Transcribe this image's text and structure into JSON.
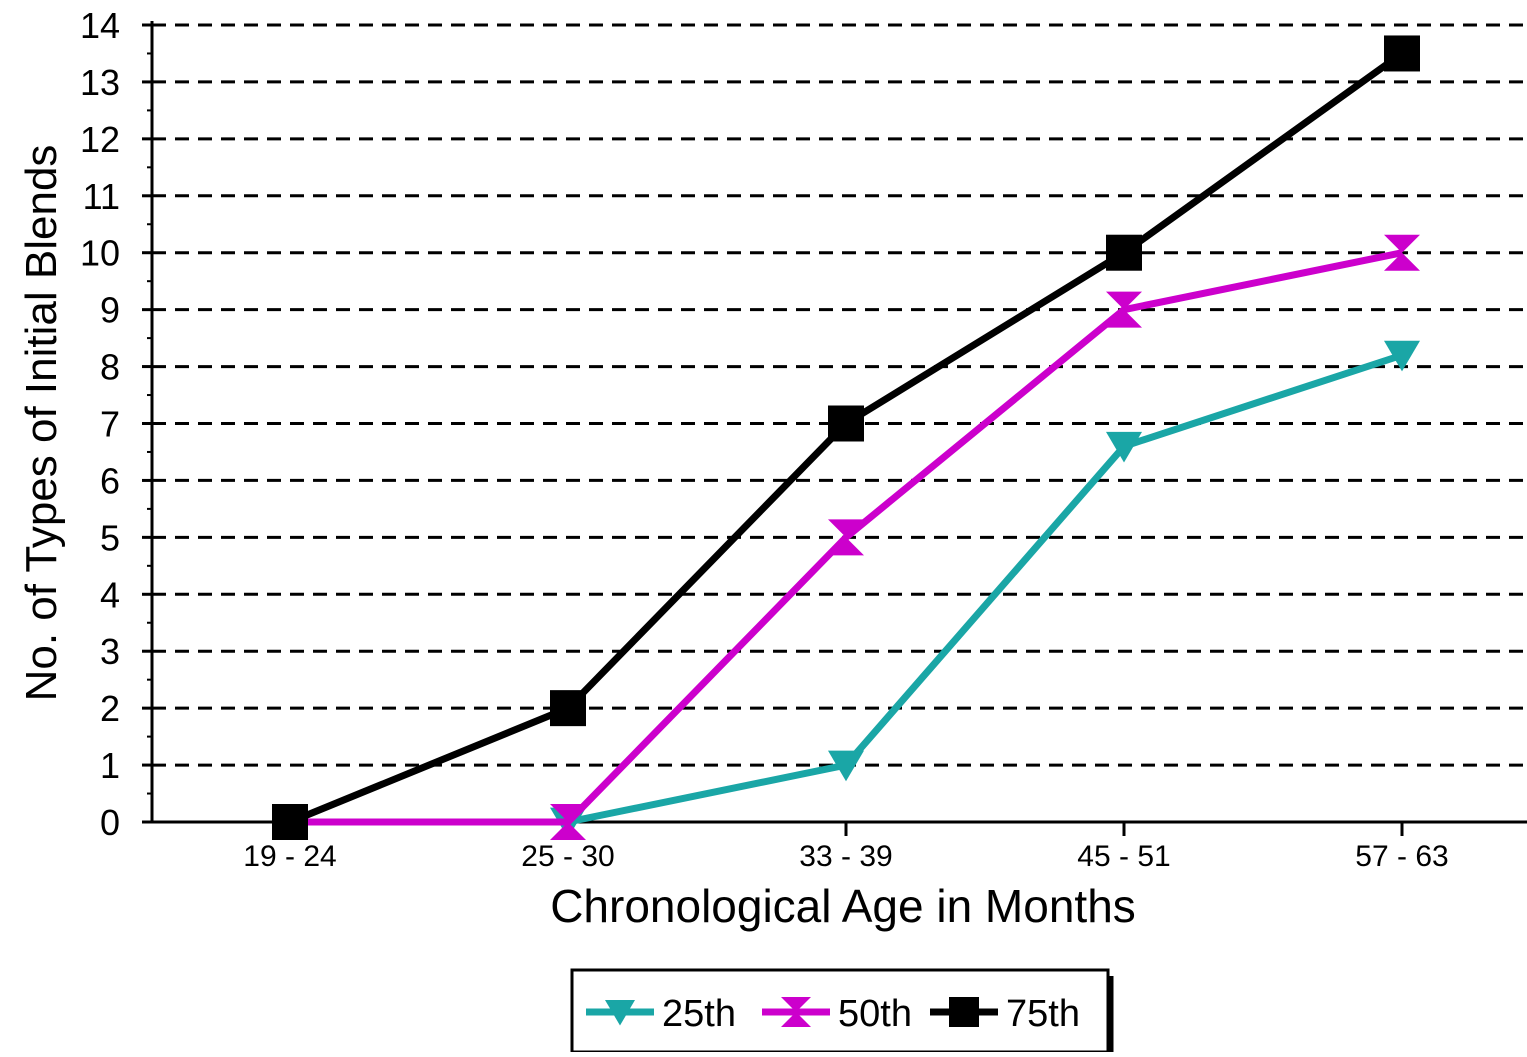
{
  "chart_data": {
    "type": "line",
    "title": "",
    "xlabel": "Chronological Age in Months",
    "ylabel": "No. of Types of Initial Blends",
    "categories": [
      "19 - 24",
      "25 - 30",
      "33 - 39",
      "45 - 51",
      "57 - 63"
    ],
    "ylim": [
      0,
      14
    ],
    "yticks": [
      0,
      1,
      2,
      3,
      4,
      5,
      6,
      7,
      8,
      9,
      10,
      11,
      12,
      13,
      14
    ],
    "grid": "horizontal dashed",
    "legend_position": "bottom-center",
    "series": [
      {
        "name": "25th",
        "color": "#1aa6a6",
        "marker": "triangle-down",
        "values": [
          null,
          0,
          1,
          6.6,
          8.2
        ]
      },
      {
        "name": "50th",
        "color": "#cc00cc",
        "marker": "hourglass",
        "values": [
          0,
          0,
          5,
          9,
          10
        ]
      },
      {
        "name": "75th",
        "color": "#000000",
        "marker": "square",
        "values": [
          0,
          2,
          7,
          10,
          13.5
        ]
      }
    ]
  }
}
